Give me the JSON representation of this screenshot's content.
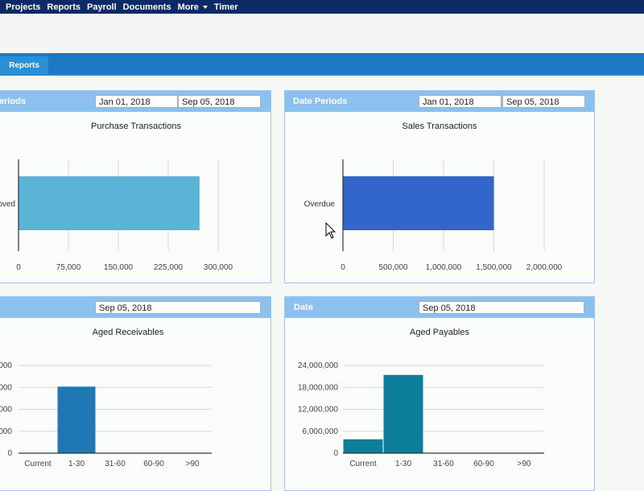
{
  "nav": {
    "items": [
      "Projects",
      "Reports",
      "Payroll",
      "Documents",
      "More",
      "Timer"
    ]
  },
  "tabs": {
    "active": "Reports"
  },
  "panels": {
    "purchase": {
      "header_label": "eriods",
      "date_from": "Jan 01, 2018",
      "date_to": "Sep 05, 2018"
    },
    "sales": {
      "header_label": "Date Periods",
      "date_from": "Jan 01, 2018",
      "date_to": "Sep 05, 2018"
    },
    "receivables": {
      "date": "Sep 05, 2018"
    },
    "payables": {
      "header_label": "Date",
      "date": "Sep 05, 2018"
    }
  },
  "chart_data": [
    {
      "type": "bar",
      "orientation": "horizontal",
      "title": "Purchase Transactions",
      "categories": [
        "oved"
      ],
      "values": [
        272000
      ],
      "xlim": [
        0,
        300000
      ],
      "ticks": [
        0,
        75000,
        150000,
        225000,
        300000
      ],
      "tick_labels": [
        "0",
        "75,000",
        "150,000",
        "225,000",
        "300,000"
      ],
      "color": "#5ab4d6",
      "grid": true
    },
    {
      "type": "bar",
      "orientation": "horizontal",
      "title": "Sales Transactions",
      "categories": [
        "Overdue"
      ],
      "values": [
        1500000
      ],
      "xlim": [
        0,
        2000000
      ],
      "ticks": [
        0,
        500000,
        1000000,
        1500000,
        2000000
      ],
      "tick_labels": [
        "0",
        "500,000",
        "1,000,000",
        "1,500,000",
        "2,000,000"
      ],
      "color": "#3366cc",
      "grid": true
    },
    {
      "type": "bar",
      "title": "Aged Receivables",
      "categories": [
        "Current",
        "1-30",
        "31-60",
        "60-90",
        ">90"
      ],
      "values": [
        0,
        18200000,
        0,
        0,
        0
      ],
      "ylim": [
        0,
        24000000
      ],
      "ticks": [
        0,
        6000000,
        12000000,
        18000000,
        24000000
      ],
      "tick_labels": [
        "0",
        "000",
        "000",
        "000",
        "000"
      ],
      "color": "#1f77b4",
      "grid": true
    },
    {
      "type": "bar",
      "title": "Aged Payables",
      "categories": [
        "Current",
        "1-30",
        "31-60",
        "60-90",
        ">90"
      ],
      "values": [
        3800000,
        21400000,
        0,
        0,
        0
      ],
      "ylim": [
        0,
        24000000
      ],
      "ticks": [
        0,
        6000000,
        12000000,
        18000000,
        24000000
      ],
      "tick_labels": [
        "0",
        "6,000,000",
        "12,000,000",
        "18,000,000",
        "24,000,000"
      ],
      "color": "#0e7f9a",
      "grid": true
    }
  ]
}
